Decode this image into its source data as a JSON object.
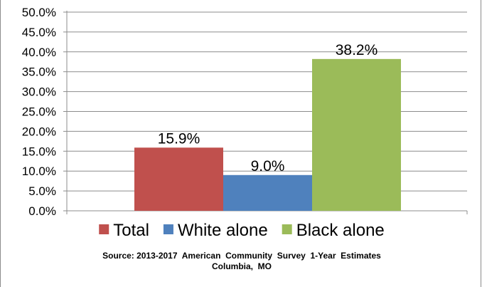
{
  "chart_data": {
    "type": "bar",
    "categories": [
      "Total",
      "White alone",
      "Black alone"
    ],
    "values": [
      15.9,
      9.0,
      38.2
    ],
    "data_labels": [
      "15.9%",
      "9.0%",
      "38.2%"
    ],
    "colors": [
      "#c0504d",
      "#4f81bd",
      "#9bbb59"
    ],
    "ylim": [
      0,
      50
    ],
    "yticks": [
      0,
      5,
      10,
      15,
      20,
      25,
      30,
      35,
      40,
      45,
      50
    ],
    "ytick_labels": [
      "0.0%",
      "5.0%",
      "10.0%",
      "15.0%",
      "20.0%",
      "25.0%",
      "30.0%",
      "35.0%",
      "40.0%",
      "45.0%",
      "50.0%"
    ],
    "grid": true,
    "legend": {
      "placement": "bottom",
      "entries": [
        "Total",
        "White alone",
        "Black alone"
      ]
    },
    "title": "",
    "xlabel": "",
    "ylabel": ""
  },
  "source": {
    "line1": "Source: 2013-2017  American  Community  Survey  1-Year  Estimates",
    "line2": "Columbia,  MO"
  }
}
